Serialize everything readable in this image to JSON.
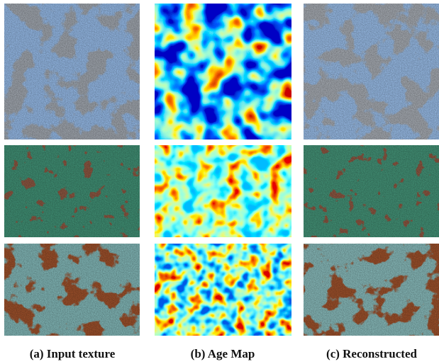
{
  "figure": {
    "captions": [
      "(a) Input texture",
      "(b) Age Map",
      "(c) Reconstructed"
    ]
  }
}
